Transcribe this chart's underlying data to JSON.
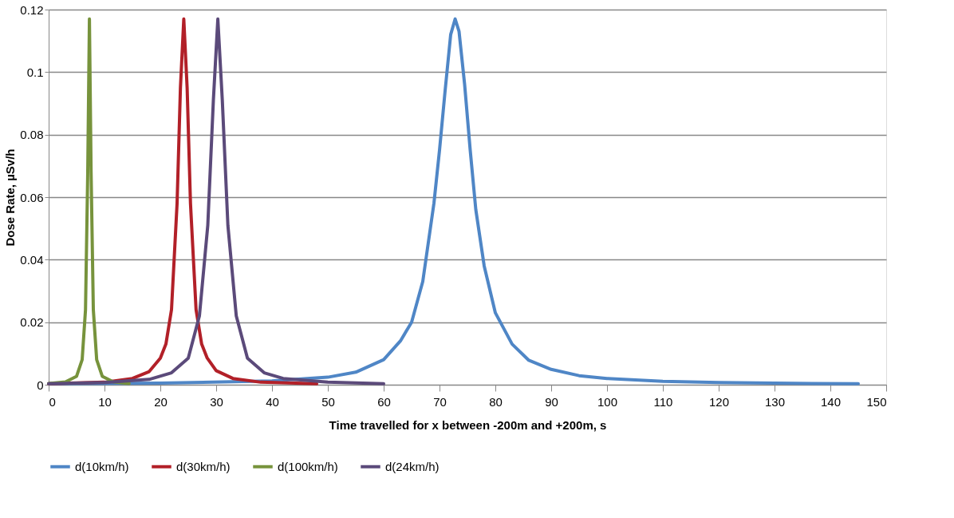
{
  "chart_data": {
    "type": "line",
    "xlabel": "Time travelled for x between -200m and +200m, s",
    "ylabel": "Dose Rate, µSv/h",
    "xlim": [
      0,
      150
    ],
    "xticks": [
      0,
      10,
      20,
      30,
      40,
      50,
      60,
      70,
      80,
      90,
      100,
      110,
      120,
      130,
      140,
      150
    ],
    "ylim": [
      0,
      0.12
    ],
    "yticks": [
      0,
      0.02,
      0.04,
      0.06,
      0.08,
      0.1,
      0.12
    ],
    "grid": "y",
    "legend": "bottom",
    "marker": "none",
    "line_style": "solid",
    "series": [
      {
        "name": "d(10km/h)",
        "color": "#4f86c6",
        "x": [
          0,
          20,
          40,
          50,
          55,
          60,
          63,
          65,
          67,
          69,
          70,
          71,
          72,
          72.8,
          73.5,
          74.5,
          75.5,
          76.5,
          78,
          80,
          83,
          86,
          90,
          95,
          100,
          110,
          120,
          130,
          145
        ],
        "values": [
          0.0003,
          0.0005,
          0.0012,
          0.0024,
          0.004,
          0.008,
          0.014,
          0.02,
          0.033,
          0.058,
          0.075,
          0.094,
          0.112,
          0.117,
          0.113,
          0.096,
          0.075,
          0.056,
          0.038,
          0.023,
          0.013,
          0.0078,
          0.0049,
          0.0029,
          0.002,
          0.0011,
          0.0007,
          0.0005,
          0.0003
        ]
      },
      {
        "name": "d(30km/h)",
        "color": "#b22028",
        "x": [
          0,
          10,
          15,
          18,
          20,
          21,
          22,
          23,
          23.6,
          24.2,
          24.8,
          25.4,
          26.4,
          27.4,
          28.4,
          30,
          33,
          38,
          48
        ],
        "values": [
          0.0003,
          0.0008,
          0.002,
          0.0042,
          0.0085,
          0.013,
          0.024,
          0.058,
          0.095,
          0.117,
          0.095,
          0.058,
          0.024,
          0.013,
          0.0085,
          0.0045,
          0.002,
          0.0008,
          0.0003
        ]
      },
      {
        "name": "d(100km/h)",
        "color": "#77933c",
        "x": [
          0,
          3,
          5,
          6,
          6.6,
          7.0,
          7.3,
          7.6,
          8.0,
          8.6,
          9.6,
          11.6,
          14.4
        ],
        "values": [
          0.0004,
          0.0009,
          0.0027,
          0.008,
          0.024,
          0.068,
          0.117,
          0.068,
          0.024,
          0.008,
          0.0027,
          0.0009,
          0.0004
        ]
      },
      {
        "name": "d(24km/h)",
        "color": "#5b4a7a",
        "x": [
          0,
          10,
          18,
          22,
          25,
          27,
          28.5,
          29.5,
          30.3,
          31.1,
          32.1,
          33.6,
          35.6,
          38.6,
          42,
          50,
          60
        ],
        "values": [
          0.0003,
          0.0007,
          0.0017,
          0.0038,
          0.0085,
          0.022,
          0.051,
          0.091,
          0.117,
          0.091,
          0.051,
          0.022,
          0.0085,
          0.0038,
          0.002,
          0.0008,
          0.0003
        ]
      }
    ]
  }
}
